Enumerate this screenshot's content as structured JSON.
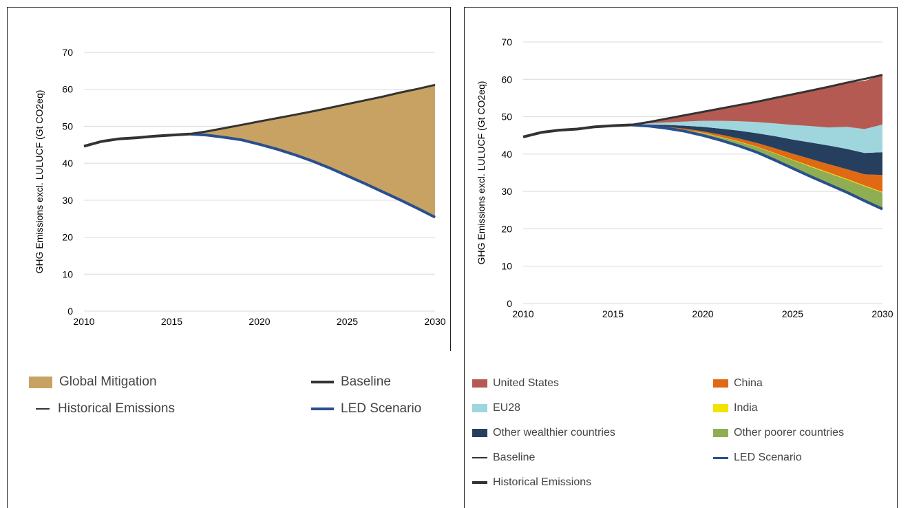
{
  "colors": {
    "global_mitigation": "#c8a262",
    "baseline": "#333333",
    "historical": "#333333",
    "led": "#2a4f8f",
    "united_states": "#b55a52",
    "eu28": "#9fd6dd",
    "other_wealthier": "#263f5e",
    "china": "#e06a13",
    "india": "#f2e400",
    "other_poorer": "#8fae53",
    "grid": "#d9d9d9"
  },
  "chart_data": [
    {
      "type": "area",
      "ylabel": "GHG Emissions excl. LULUCF (Gt CO2eq)",
      "xlabel": "",
      "xlim": [
        2010,
        2030
      ],
      "ylim": [
        0,
        70
      ],
      "x_ticks": [
        "2010",
        "2015",
        "2020",
        "2025",
        "2030"
      ],
      "y_ticks": [
        "0",
        "10",
        "20",
        "30",
        "40",
        "50",
        "60",
        "70"
      ],
      "grid": true,
      "legend_position": "bottom",
      "legend": {
        "global_mitigation": "Global Mitigation",
        "historical": "Historical Emissions",
        "baseline": "Baseline",
        "led": "LED Scenario"
      },
      "series": [
        {
          "name": "Historical Emissions",
          "x": [
            2010,
            2011,
            2012,
            2013,
            2014,
            2015,
            2016
          ],
          "values": [
            44.6,
            45.9,
            46.6,
            46.9,
            47.3,
            47.6,
            47.9
          ]
        },
        {
          "name": "Baseline",
          "x": [
            2016,
            2017,
            2018,
            2019,
            2020,
            2021,
            2022,
            2023,
            2024,
            2025,
            2026,
            2027,
            2028,
            2029,
            2030
          ],
          "values": [
            47.9,
            48.6,
            49.5,
            50.4,
            51.3,
            52.2,
            53.1,
            54.0,
            55.0,
            56.0,
            57.0,
            58.0,
            59.1,
            60.1,
            61.2
          ]
        },
        {
          "name": "LED Scenario",
          "x": [
            2016,
            2017,
            2018,
            2019,
            2020,
            2021,
            2022,
            2023,
            2024,
            2025,
            2026,
            2027,
            2028,
            2029,
            2030
          ],
          "values": [
            47.9,
            47.6,
            47.0,
            46.3,
            45.1,
            43.8,
            42.3,
            40.6,
            38.7,
            36.6,
            34.5,
            32.3,
            30.1,
            27.8,
            25.4
          ]
        },
        {
          "name": "Global Mitigation",
          "x": [
            2016,
            2030
          ],
          "values": [
            0,
            35.8
          ]
        }
      ]
    },
    {
      "type": "area",
      "ylabel": "GHG Emissions excl. LULUCF (Gt CO2eq)",
      "xlabel": "",
      "xlim": [
        2010,
        2030
      ],
      "ylim": [
        0,
        70
      ],
      "x_ticks": [
        "2010",
        "2015",
        "2020",
        "2025",
        "2030"
      ],
      "y_ticks": [
        "0",
        "10",
        "20",
        "30",
        "40",
        "50",
        "60",
        "70"
      ],
      "grid": true,
      "legend_position": "bottom",
      "legend": {
        "united_states": "United States",
        "china": "China",
        "eu28": "EU28",
        "india": "India",
        "other_wealthier": "Other wealthier countries",
        "other_poorer": "Other poorer countries",
        "baseline": "Baseline",
        "led": "LED Scenario",
        "historical": "Historical Emissions"
      },
      "x": [
        2016,
        2017,
        2018,
        2019,
        2020,
        2021,
        2022,
        2023,
        2024,
        2025,
        2026,
        2027,
        2028,
        2029,
        2030
      ],
      "historical": {
        "x": [
          2010,
          2011,
          2012,
          2013,
          2014,
          2015,
          2016
        ],
        "values": [
          44.6,
          45.8,
          46.4,
          46.7,
          47.3,
          47.6,
          47.8
        ]
      },
      "baseline": [
        47.8,
        48.6,
        49.5,
        50.4,
        51.3,
        52.2,
        53.1,
        54.0,
        55.0,
        56.0,
        57.0,
        58.0,
        59.1,
        60.1,
        61.2
      ],
      "stacked_series": [
        {
          "name": "LED Scenario",
          "values": [
            47.8,
            47.5,
            46.9,
            46.1,
            45.0,
            43.7,
            42.2,
            40.5,
            38.4,
            36.2,
            34.0,
            31.9,
            29.8,
            27.5,
            25.3
          ]
        },
        {
          "name": "Other poorer countries",
          "values": [
            0.0,
            0.1,
            0.2,
            0.4,
            0.6,
            0.8,
            1.1,
            1.4,
            1.8,
            2.2,
            2.6,
            3.0,
            3.4,
            3.9,
            4.4
          ]
        },
        {
          "name": "India",
          "values": [
            0.0,
            0.0,
            0.0,
            0.0,
            0.1,
            0.1,
            0.1,
            0.1,
            0.1,
            0.1,
            0.2,
            0.2,
            0.2,
            0.2,
            0.2
          ]
        },
        {
          "name": "China",
          "values": [
            0.0,
            0.1,
            0.2,
            0.3,
            0.4,
            0.6,
            0.8,
            1.0,
            1.3,
            1.6,
            1.9,
            2.2,
            2.6,
            3.0,
            4.5
          ]
        },
        {
          "name": "Other wealthier countries",
          "values": [
            0.0,
            0.2,
            0.5,
            0.8,
            1.2,
            1.6,
            2.1,
            2.6,
            3.2,
            3.8,
            4.4,
            5.0,
            5.4,
            5.7,
            6.1
          ]
        },
        {
          "name": "EU28",
          "values": [
            0.0,
            0.3,
            0.7,
            1.1,
            1.6,
            2.1,
            2.5,
            3.0,
            3.4,
            3.9,
            4.4,
            4.8,
            5.9,
            6.4,
            7.4
          ]
        },
        {
          "name": "United States",
          "values": [
            0.0,
            0.4,
            1.0,
            1.7,
            2.4,
            3.3,
            4.3,
            5.4,
            6.8,
            8.2,
            9.5,
            10.8,
            11.8,
            12.9,
            13.3
          ]
        }
      ]
    }
  ]
}
